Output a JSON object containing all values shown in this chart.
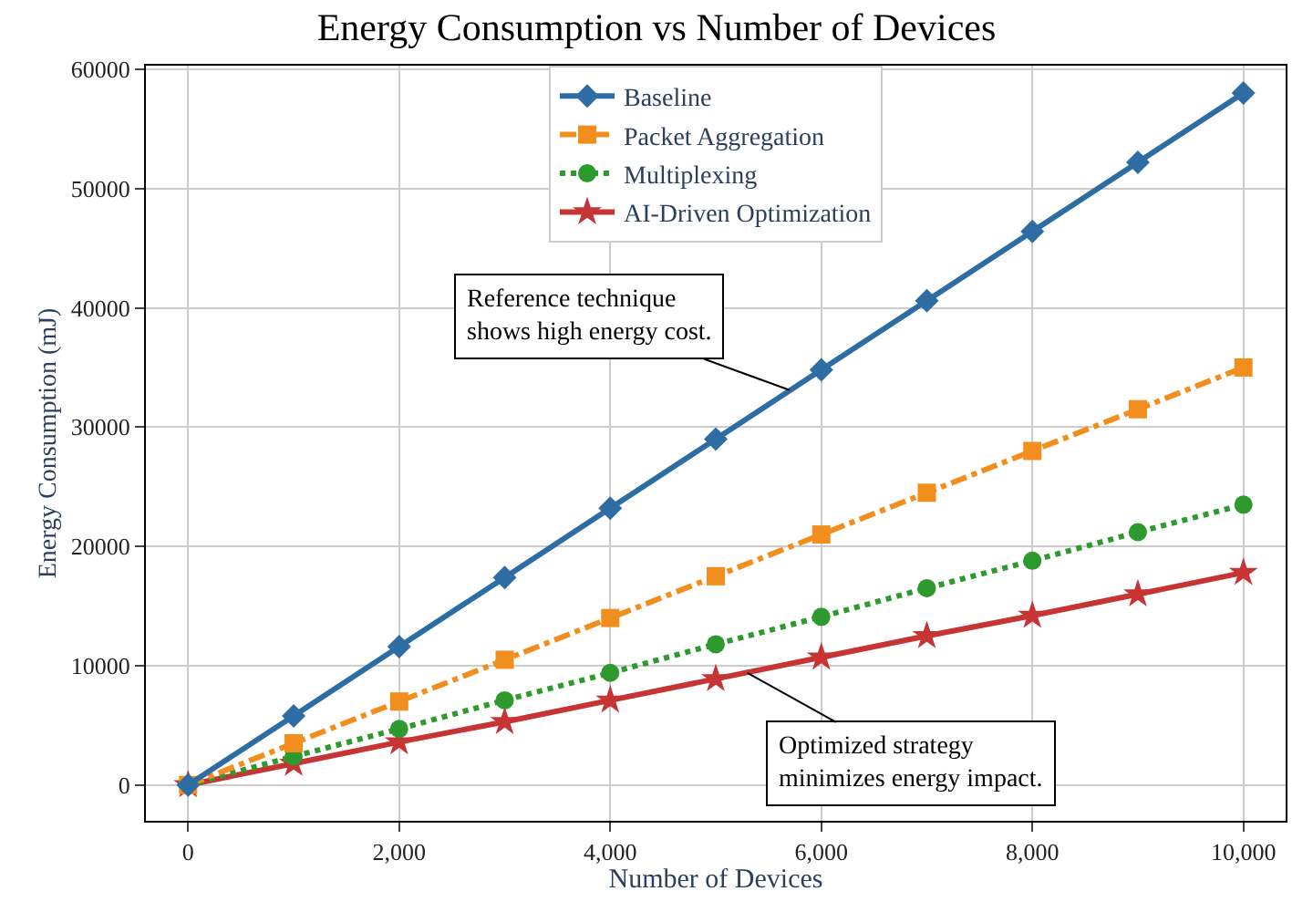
{
  "chart_data": {
    "type": "line",
    "title": "Energy Consumption vs Number of Devices",
    "xlabel": "Number of Devices",
    "ylabel": "Energy Consumption (mJ)",
    "x": [
      0,
      1000,
      2000,
      3000,
      4000,
      5000,
      6000,
      7000,
      8000,
      9000,
      10000
    ],
    "series": [
      {
        "name": "Baseline",
        "color": "#2d6da3",
        "marker": "diamond",
        "line_style": "solid",
        "values": [
          0,
          5800,
          11600,
          17400,
          23200,
          29000,
          34800,
          40600,
          46400,
          52200,
          58000
        ]
      },
      {
        "name": "Packet Aggregation",
        "color": "#f28e1e",
        "marker": "square",
        "line_style": "dashdot",
        "values": [
          0,
          3500,
          7000,
          10500,
          14000,
          17500,
          21000,
          24500,
          28000,
          31500,
          35000
        ]
      },
      {
        "name": "Multiplexing",
        "color": "#2e9a2e",
        "marker": "circle",
        "line_style": "dotted",
        "values": [
          0,
          2400,
          4700,
          7100,
          9400,
          11800,
          14100,
          16500,
          18800,
          21200,
          23500
        ]
      },
      {
        "name": "AI-Driven Optimization",
        "color": "#c63434",
        "marker": "star",
        "line_style": "solid",
        "values": [
          0,
          1800,
          3600,
          5300,
          7100,
          8900,
          10700,
          12500,
          14200,
          16000,
          17800
        ]
      }
    ],
    "xlim": [
      -400,
      10400
    ],
    "xticks": [
      {
        "value": 0,
        "label": "0"
      },
      {
        "value": 2000,
        "label": "2,000"
      },
      {
        "value": 4000,
        "label": "4,000"
      },
      {
        "value": 6000,
        "label": "6,000"
      },
      {
        "value": 8000,
        "label": "8,000"
      },
      {
        "value": 10000,
        "label": "10,000"
      }
    ],
    "ylim": [
      -3000,
      60300
    ],
    "yticks": [
      0,
      10000,
      20000,
      30000,
      40000,
      50000,
      60000
    ],
    "grid": true,
    "legend": "top",
    "annotations": [
      {
        "text": "Reference technique\nshows high energy cost.",
        "x": 5700,
        "y": 33100
      },
      {
        "text": "Optimized strategy\nminimizes energy impact.",
        "x": 5300,
        "y": 9400
      }
    ]
  }
}
